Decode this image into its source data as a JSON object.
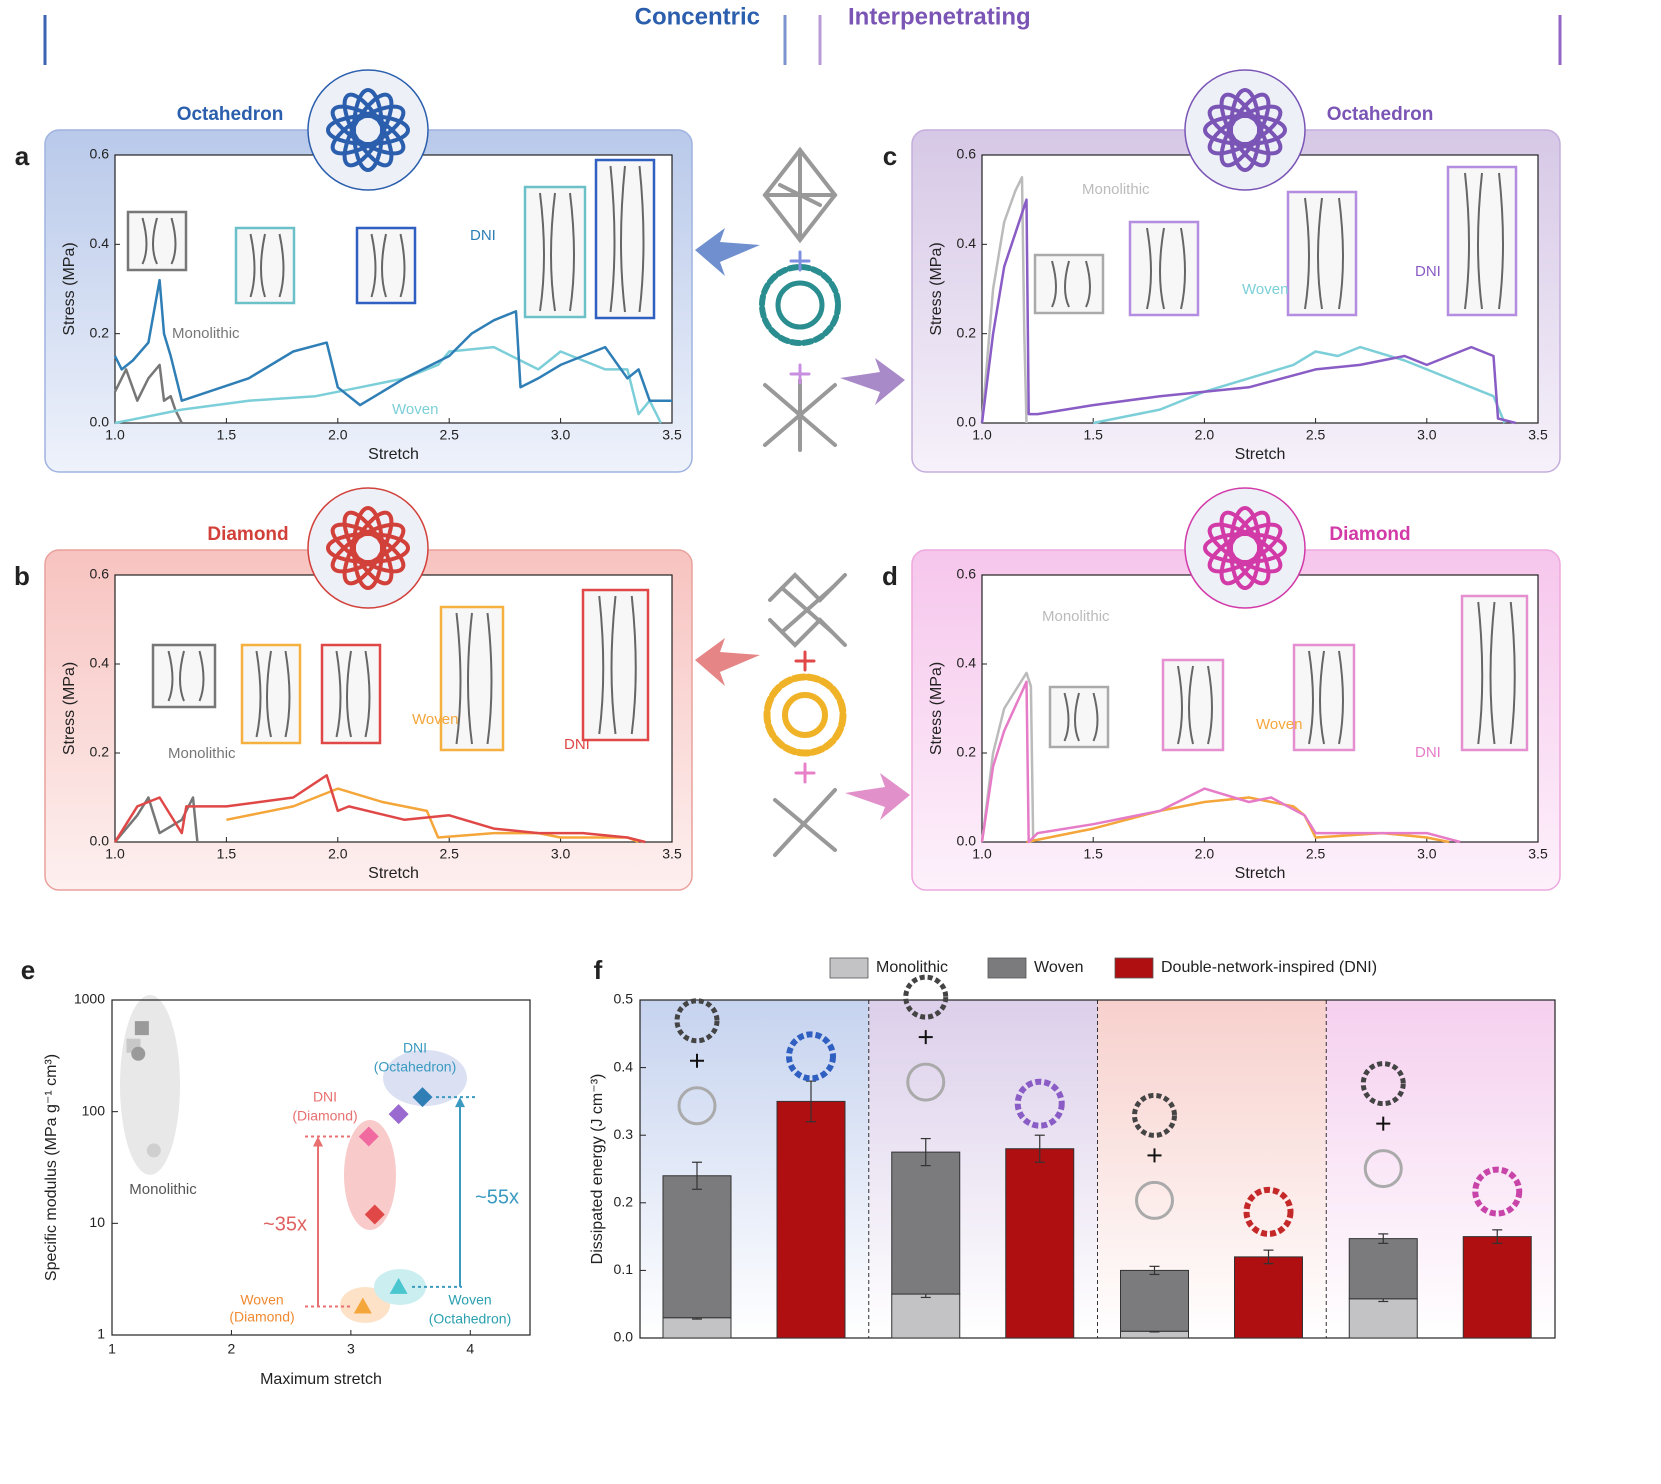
{
  "header": {
    "left": "Concentric",
    "right": "Interpenetrating"
  },
  "chart_data": [
    {
      "type": "line",
      "panel": "a",
      "title": "Octahedron",
      "title_color": "#2b5fad",
      "xlabel": "Stretch",
      "ylabel": "Stress (MPa)",
      "xlim": [
        1,
        3.5
      ],
      "ylim": [
        0,
        0.6
      ],
      "xticks": [
        {
          "value": 1,
          "label": "1.0"
        },
        {
          "value": 1.5,
          "label": "1.5"
        },
        {
          "value": 2,
          "label": "2.0"
        },
        {
          "value": 2.5,
          "label": "2.5"
        },
        {
          "value": 3,
          "label": "3.0"
        },
        {
          "value": 3.5,
          "label": "3.5"
        }
      ],
      "yticks": [
        {
          "value": 0,
          "label": "0.0"
        },
        {
          "value": 0.2,
          "label": "0.2"
        },
        {
          "value": 0.4,
          "label": "0.4"
        },
        {
          "value": 0.6,
          "label": "0.6"
        }
      ],
      "series": [
        {
          "name": "Monolithic",
          "color": "#777777",
          "x": [
            1,
            1.05,
            1.1,
            1.15,
            1.2,
            1.22,
            1.25,
            1.27,
            1.3
          ],
          "values": [
            0.07,
            0.12,
            0.05,
            0.1,
            0.13,
            0.05,
            0.06,
            0.03,
            0.0
          ]
        },
        {
          "name": "Woven",
          "color": "#7ccfd8",
          "x": [
            1,
            1.3,
            1.6,
            1.9,
            2.1,
            2.3,
            2.45,
            2.5,
            2.7,
            2.9,
            3.0,
            3.2,
            3.3,
            3.35,
            3.4,
            3.45
          ],
          "values": [
            0,
            0.03,
            0.05,
            0.06,
            0.08,
            0.1,
            0.13,
            0.16,
            0.17,
            0.12,
            0.16,
            0.12,
            0.12,
            0.02,
            0.05,
            0
          ]
        },
        {
          "name": "DNI",
          "color": "#2f7fb6",
          "x": [
            1,
            1.03,
            1.08,
            1.15,
            1.2,
            1.22,
            1.25,
            1.3,
            1.6,
            1.8,
            1.95,
            2.0,
            2.1,
            2.3,
            2.5,
            2.6,
            2.7,
            2.8,
            2.82,
            2.9,
            3.0,
            3.2,
            3.3,
            3.35,
            3.4,
            3.5
          ],
          "values": [
            0.15,
            0.12,
            0.14,
            0.18,
            0.32,
            0.2,
            0.15,
            0.05,
            0.1,
            0.16,
            0.18,
            0.08,
            0.04,
            0.1,
            0.15,
            0.2,
            0.23,
            0.25,
            0.08,
            0.1,
            0.13,
            0.17,
            0.1,
            0.12,
            0.05,
            0.05
          ]
        }
      ]
    },
    {
      "type": "line",
      "panel": "b",
      "title": "Diamond",
      "title_color": "#d2403a",
      "xlabel": "Stretch",
      "ylabel": "Stress (MPa)",
      "xlim": [
        1,
        3.5
      ],
      "ylim": [
        0,
        0.6
      ],
      "xticks": [
        {
          "value": 1,
          "label": "1.0"
        },
        {
          "value": 1.5,
          "label": "1.5"
        },
        {
          "value": 2,
          "label": "2.0"
        },
        {
          "value": 2.5,
          "label": "2.5"
        },
        {
          "value": 3,
          "label": "3.0"
        },
        {
          "value": 3.5,
          "label": "3.5"
        }
      ],
      "yticks": [
        {
          "value": 0,
          "label": "0.0"
        },
        {
          "value": 0.2,
          "label": "0.2"
        },
        {
          "value": 0.4,
          "label": "0.4"
        },
        {
          "value": 0.6,
          "label": "0.6"
        }
      ],
      "series": [
        {
          "name": "Monolithic",
          "color": "#777777",
          "x": [
            1,
            1.1,
            1.15,
            1.2,
            1.3,
            1.35,
            1.37
          ],
          "values": [
            0,
            0.06,
            0.1,
            0.02,
            0.05,
            0.1,
            0
          ]
        },
        {
          "name": "Woven",
          "color": "#f5a63a",
          "x": [
            1.5,
            1.8,
            2.0,
            2.2,
            2.4,
            2.45,
            2.7,
            2.9,
            3.0,
            3.3,
            3.35
          ],
          "values": [
            0.05,
            0.08,
            0.12,
            0.09,
            0.07,
            0.01,
            0.02,
            0.02,
            0.01,
            0.01,
            0
          ]
        },
        {
          "name": "DNI",
          "color": "#e04848",
          "x": [
            1,
            1.1,
            1.2,
            1.3,
            1.32,
            1.5,
            1.8,
            1.95,
            2.0,
            2.05,
            2.3,
            2.5,
            2.7,
            2.9,
            3.1,
            3.3,
            3.38
          ],
          "values": [
            0,
            0.08,
            0.1,
            0.02,
            0.08,
            0.08,
            0.1,
            0.15,
            0.07,
            0.08,
            0.05,
            0.06,
            0.03,
            0.02,
            0.02,
            0.01,
            0
          ]
        }
      ]
    },
    {
      "type": "line",
      "panel": "c",
      "title": "Octahedron",
      "title_color": "#7a55b5",
      "xlabel": "Stretch",
      "ylabel": "Stress (MPa)",
      "xlim": [
        1,
        3.5
      ],
      "ylim": [
        0,
        0.6
      ],
      "xticks": [
        {
          "value": 1,
          "label": "1.0"
        },
        {
          "value": 1.5,
          "label": "1.5"
        },
        {
          "value": 2,
          "label": "2.0"
        },
        {
          "value": 2.5,
          "label": "2.5"
        },
        {
          "value": 3,
          "label": "3.0"
        },
        {
          "value": 3.5,
          "label": "3.5"
        }
      ],
      "yticks": [
        {
          "value": 0,
          "label": "0.0"
        },
        {
          "value": 0.2,
          "label": "0.2"
        },
        {
          "value": 0.4,
          "label": "0.4"
        },
        {
          "value": 0.6,
          "label": "0.6"
        }
      ],
      "series": [
        {
          "name": "Monolithic",
          "color": "#bbbbbb",
          "x": [
            1,
            1.05,
            1.1,
            1.15,
            1.18,
            1.19,
            1.2
          ],
          "values": [
            0,
            0.3,
            0.45,
            0.52,
            0.55,
            0.2,
            0
          ]
        },
        {
          "name": "Woven",
          "color": "#7ccfd8",
          "x": [
            1.5,
            1.8,
            2.0,
            2.2,
            2.4,
            2.5,
            2.6,
            2.7,
            2.9,
            3.0,
            3.2,
            3.3,
            3.35
          ],
          "values": [
            0,
            0.03,
            0.07,
            0.1,
            0.13,
            0.16,
            0.15,
            0.17,
            0.14,
            0.12,
            0.08,
            0.06,
            0
          ]
        },
        {
          "name": "DNI",
          "color": "#8a5cc5",
          "x": [
            1,
            1.05,
            1.1,
            1.2,
            1.21,
            1.25,
            1.5,
            1.8,
            2.0,
            2.2,
            2.5,
            2.7,
            2.9,
            3.0,
            3.1,
            3.2,
            3.3,
            3.32,
            3.4
          ],
          "values": [
            0,
            0.2,
            0.35,
            0.5,
            0.02,
            0.02,
            0.04,
            0.06,
            0.07,
            0.08,
            0.12,
            0.13,
            0.15,
            0.13,
            0.15,
            0.17,
            0.15,
            0.01,
            0
          ]
        }
      ]
    },
    {
      "type": "line",
      "panel": "d",
      "title": "Diamond",
      "title_color": "#d23aa8",
      "xlabel": "Stretch",
      "ylabel": "Stress (MPa)",
      "xlim": [
        1,
        3.5
      ],
      "ylim": [
        0,
        0.6
      ],
      "xticks": [
        {
          "value": 1,
          "label": "1.0"
        },
        {
          "value": 1.5,
          "label": "1.5"
        },
        {
          "value": 2,
          "label": "2.0"
        },
        {
          "value": 2.5,
          "label": "2.5"
        },
        {
          "value": 3,
          "label": "3.0"
        },
        {
          "value": 3.5,
          "label": "3.5"
        }
      ],
      "yticks": [
        {
          "value": 0,
          "label": "0.0"
        },
        {
          "value": 0.2,
          "label": "0.2"
        },
        {
          "value": 0.4,
          "label": "0.4"
        },
        {
          "value": 0.6,
          "label": "0.6"
        }
      ],
      "series": [
        {
          "name": "Monolithic",
          "color": "#bbbbbb",
          "x": [
            1,
            1.05,
            1.1,
            1.2,
            1.22,
            1.23
          ],
          "values": [
            0,
            0.2,
            0.3,
            0.38,
            0.35,
            0
          ]
        },
        {
          "name": "Woven",
          "color": "#f5a63a",
          "x": [
            1.2,
            1.5,
            1.8,
            2.0,
            2.2,
            2.4,
            2.45,
            2.5,
            2.8,
            3.0,
            3.1
          ],
          "values": [
            0,
            0.03,
            0.07,
            0.09,
            0.1,
            0.08,
            0.06,
            0.01,
            0.02,
            0.01,
            0
          ]
        },
        {
          "name": "DNI",
          "color": "#e67cc7",
          "x": [
            1,
            1.05,
            1.1,
            1.2,
            1.21,
            1.25,
            1.5,
            1.8,
            2.0,
            2.2,
            2.3,
            2.45,
            2.5,
            2.8,
            3.0,
            3.15
          ],
          "values": [
            0,
            0.17,
            0.25,
            0.36,
            0,
            0.02,
            0.04,
            0.07,
            0.12,
            0.09,
            0.1,
            0.06,
            0.02,
            0.02,
            0.02,
            0
          ]
        }
      ]
    },
    {
      "type": "scatter",
      "panel": "e",
      "xlabel": "Maximum stretch",
      "ylabel": "Specific modulus (MPa g⁻¹ cm³)",
      "xlim": [
        1,
        4.5
      ],
      "ylim": [
        1,
        1000
      ],
      "log_y": true,
      "xticks": [
        1,
        2,
        3,
        4
      ],
      "yticks": [
        1,
        10,
        100,
        1000
      ],
      "x": [
        1.25,
        1.18,
        1.22,
        1.35,
        3.15,
        3.2,
        3.4,
        3.6,
        3.1,
        3.4
      ],
      "values": [
        560,
        390,
        330,
        45,
        60,
        12,
        95,
        135,
        1.8,
        2.7
      ],
      "colors": [
        "#9a9a9a",
        "#c8c8c8",
        "#9a9a9a",
        "#cfcfcf",
        "#f06aa0",
        "#e04848",
        "#9a6ad0",
        "#2f7fb6",
        "#f5a63a",
        "#4ac6cf"
      ],
      "markers": [
        "square",
        "square",
        "circle",
        "circle",
        "diamond",
        "diamond",
        "diamond",
        "diamond",
        "triangle",
        "triangle"
      ],
      "annotations": [
        "Monolithic",
        "DNI",
        "(Diamond)",
        "DNI",
        "(Octahedron)",
        "Woven",
        "(Diamond)",
        "Woven",
        "(Octahedron)",
        "~35x",
        "~55x"
      ]
    },
    {
      "type": "bar",
      "panel": "f",
      "stacked": true,
      "ylabel": "Dissipated energy (J cm⁻³)",
      "ylim": [
        0,
        0.5
      ],
      "yticks": [
        {
          "value": 0,
          "label": "0.0"
        },
        {
          "value": 0.1,
          "label": "0.1"
        },
        {
          "value": 0.2,
          "label": "0.2"
        },
        {
          "value": 0.3,
          "label": "0.3"
        },
        {
          "value": 0.4,
          "label": "0.4"
        },
        {
          "value": 0.5,
          "label": "0.5"
        }
      ],
      "categories": [
        null,
        null,
        null,
        null,
        null,
        null,
        null,
        null
      ],
      "series": [
        {
          "name": "Monolithic",
          "color": "#c3c3c6",
          "values": [
            0.03,
            null,
            0.065,
            null,
            0.01,
            null,
            0.058,
            null
          ],
          "errors": [
            0.002,
            null,
            0.005,
            null,
            0.001,
            null,
            0.004,
            null
          ]
        },
        {
          "name": "Woven",
          "color": "#7b7b7e",
          "values": [
            0.21,
            null,
            0.21,
            null,
            0.09,
            null,
            0.089,
            null
          ],
          "errors": [
            0.02,
            null,
            0.02,
            null,
            0.006,
            null,
            0.007,
            null
          ]
        },
        {
          "name": "Double-network-inspired (DNI)",
          "color": "#b00f12",
          "values": [
            null,
            0.35,
            null,
            0.28,
            null,
            0.12,
            null,
            0.15
          ],
          "errors": [
            null,
            0.03,
            null,
            0.02,
            null,
            0.01,
            null,
            0.01
          ]
        }
      ]
    }
  ]
}
